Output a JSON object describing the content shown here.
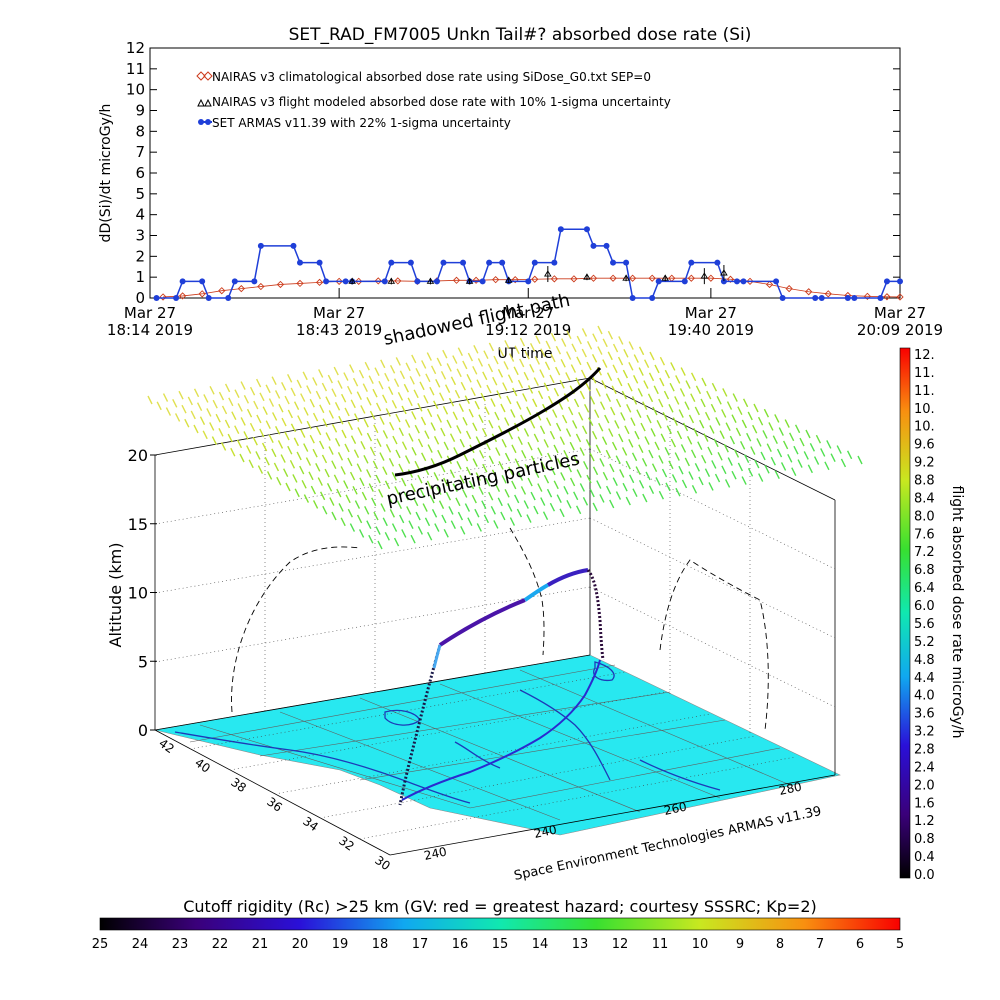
{
  "chart_data": [
    {
      "type": "line",
      "title": "SET_RAD_FM7005  Unkn Tail#? absorbed dose rate (Si)",
      "xlabel": "UT time",
      "ylabel": "dD(Si)/dt microGy/h",
      "ylim": [
        0,
        12
      ],
      "yticks": [
        "0",
        "1",
        "2",
        "3",
        "4",
        "5",
        "6",
        "7",
        "8",
        "9",
        "10",
        "11",
        "12"
      ],
      "x_range_min": [
        0,
        115
      ],
      "xticks": [
        {
          "m": 0,
          "line1": "Mar 27",
          "line2": "18:14 2019"
        },
        {
          "m": 29,
          "line1": "Mar 27",
          "line2": "18:43 2019"
        },
        {
          "m": 58,
          "line1": "Mar 27",
          "line2": "19:12 2019"
        },
        {
          "m": 86,
          "line1": "Mar 27",
          "line2": "19:40 2019"
        },
        {
          "m": 115,
          "line1": "Mar 27",
          "line2": "20:09 2019"
        }
      ],
      "legend_position": "top-left",
      "series": [
        {
          "name": "NAIRAS v3 climatological absorbed dose rate using SiDose_G0.txt SEP=0",
          "color": "#cc3b1b",
          "marker": "diamond",
          "x": [
            2,
            5,
            8,
            11,
            14,
            17,
            20,
            23,
            26,
            29,
            32,
            35,
            38,
            41,
            44,
            47,
            50,
            53,
            56,
            59,
            62,
            65,
            68,
            71,
            74,
            77,
            80,
            83,
            86,
            89,
            92,
            95,
            98,
            101,
            104,
            107,
            110,
            113,
            115
          ],
          "y": [
            0.05,
            0.1,
            0.2,
            0.35,
            0.45,
            0.55,
            0.65,
            0.7,
            0.75,
            0.8,
            0.8,
            0.82,
            0.82,
            0.8,
            0.82,
            0.85,
            0.85,
            0.88,
            0.88,
            0.9,
            0.92,
            0.92,
            0.95,
            0.95,
            0.95,
            0.95,
            0.95,
            0.95,
            0.95,
            0.9,
            0.8,
            0.65,
            0.45,
            0.3,
            0.2,
            0.12,
            0.08,
            0.06,
            0.05
          ]
        },
        {
          "name": "NAIRAS v3 flight modeled absorbed dose rate with 10% 1-sigma uncertainty",
          "color": "#000000",
          "marker": "triangle",
          "x": [
            31,
            37,
            43,
            49,
            55,
            61,
            67,
            73,
            79,
            85,
            88
          ],
          "y": [
            0.8,
            0.8,
            0.8,
            0.8,
            0.85,
            1.15,
            1.0,
            0.95,
            0.95,
            1.05,
            1.2
          ]
        },
        {
          "name": "SET ARMAS v11.39 with 22% 1-sigma uncertainty",
          "color": "#1f3fd8",
          "marker": "circle",
          "x": [
            1,
            4,
            5,
            8,
            9,
            12,
            13,
            16,
            17,
            22,
            23,
            26,
            27,
            30,
            31,
            36,
            37,
            40,
            41,
            44,
            45,
            48,
            49,
            51,
            52,
            54,
            55,
            58,
            59,
            62,
            63,
            67,
            68,
            70,
            71,
            73,
            74,
            77,
            78,
            82,
            83,
            87,
            88,
            90,
            91,
            96,
            97,
            102,
            103,
            107,
            108,
            112,
            113,
            115
          ],
          "y": [
            0,
            0,
            0.8,
            0.8,
            0,
            0,
            0.8,
            0.8,
            2.5,
            2.5,
            1.7,
            1.7,
            0.8,
            0.8,
            0.8,
            0.8,
            1.7,
            1.7,
            0.8,
            0.8,
            1.7,
            1.7,
            0.8,
            0.8,
            1.7,
            1.7,
            0.8,
            0.8,
            1.7,
            1.7,
            3.3,
            3.3,
            2.5,
            2.5,
            1.7,
            1.7,
            0,
            0,
            0.8,
            0.8,
            1.7,
            1.7,
            0.8,
            0.8,
            0.8,
            0.8,
            0,
            0,
            0,
            0,
            0,
            0,
            0.8,
            0.8
          ]
        }
      ]
    },
    {
      "type": "scatter",
      "title": "shadowed flight path",
      "annotation": "precipitating particles",
      "zlabel": "Altitude (km)",
      "zticks": [
        "0",
        "5",
        "10",
        "15",
        "20"
      ],
      "lat_ticks": [
        "42",
        "40",
        "38",
        "36",
        "34",
        "32",
        "30"
      ],
      "lon_ticks": [
        "240",
        "240",
        "260",
        "280"
      ],
      "credit": "Space Environment Technologies ARMAS v11.39",
      "flight_path_altitude_km": [
        0,
        2,
        4,
        5.5,
        6.2,
        7.2,
        8.4,
        9.5,
        10.5,
        11.4,
        11.8,
        11.6,
        9.8,
        8.0,
        6.5,
        5.0,
        4.0
      ],
      "colorbar": {
        "label": "flight absorbed dose rate microGy/h",
        "ticks": [
          "12.",
          "11.",
          "11.",
          "10.",
          "10.",
          "9.6",
          "9.2",
          "8.8",
          "8.4",
          "8.0",
          "7.6",
          "7.2",
          "6.8",
          "6.4",
          "6.0",
          "5.6",
          "5.2",
          "4.8",
          "4.4",
          "4.0",
          "3.6",
          "3.2",
          "2.8",
          "2.4",
          "2.0",
          "1.6",
          "1.2",
          "0.8",
          "0.4",
          "0.0"
        ]
      },
      "rigidity_bar": {
        "label": "Cutoff rigidity (Rc) >25 km (GV: red = greatest hazard; courtesy SSSRC; Kp=2)",
        "ticks": [
          "25",
          "24",
          "23",
          "22",
          "21",
          "20",
          "19",
          "18",
          "17",
          "16",
          "15",
          "14",
          "13",
          "12",
          "11",
          "10",
          "9",
          "8",
          "7",
          "6",
          "5"
        ]
      }
    }
  ]
}
